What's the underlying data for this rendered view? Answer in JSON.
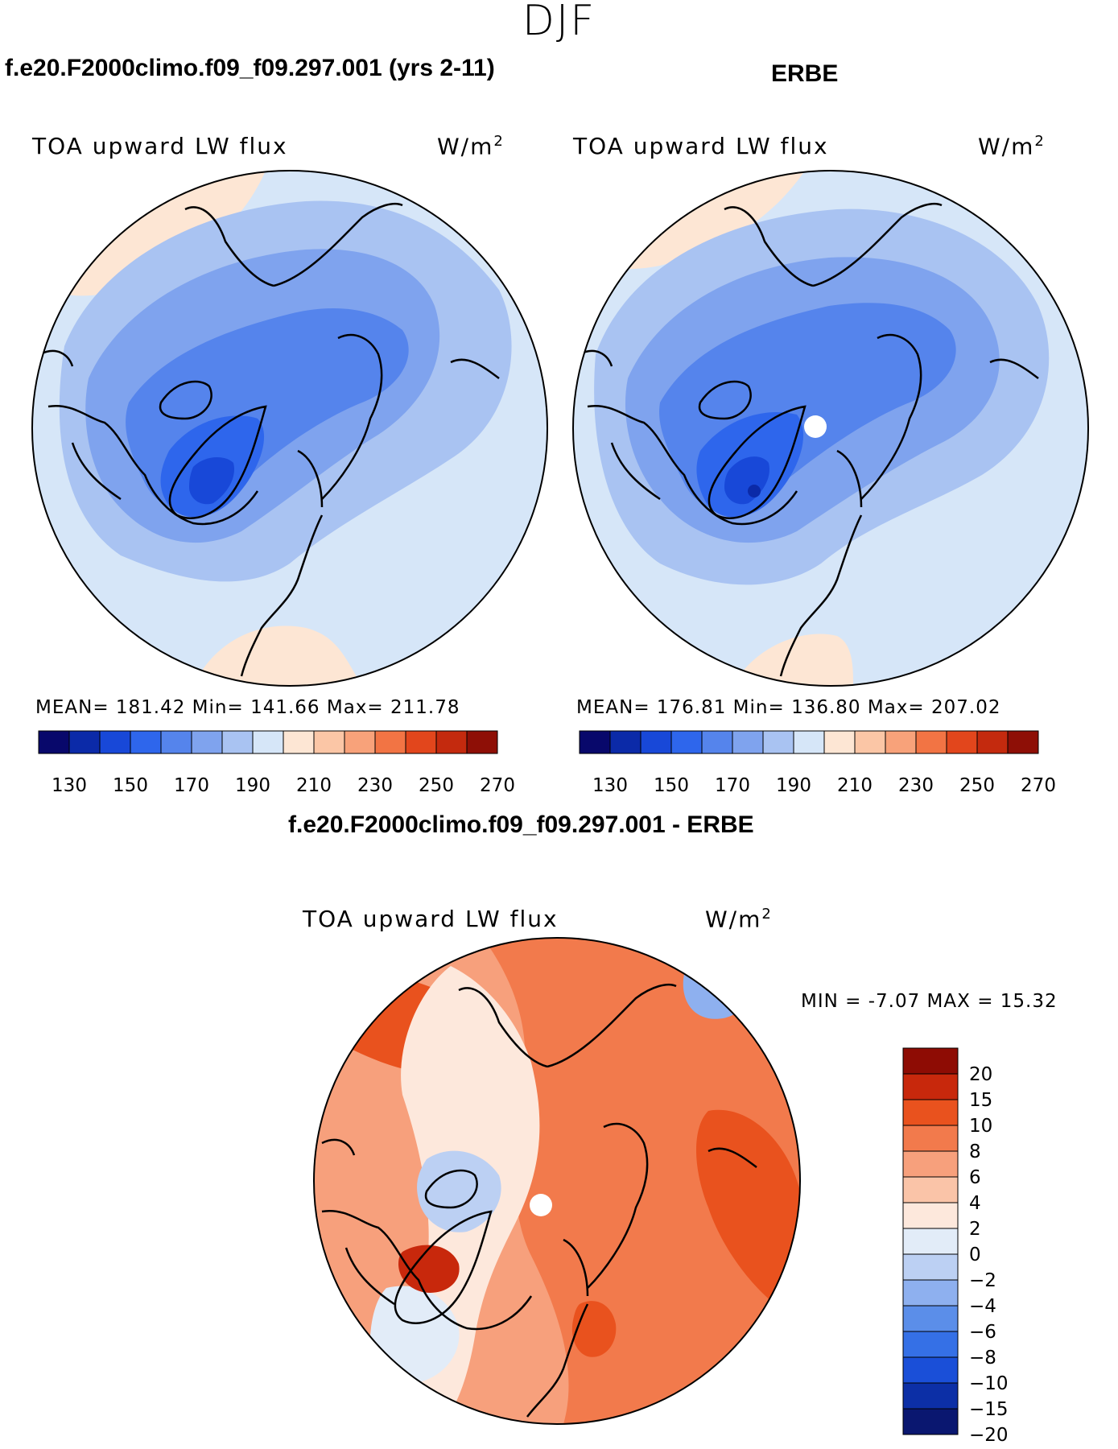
{
  "season": "DJF",
  "panel_left": {
    "title": "f.e20.F2000climo.f09_f09.297.001 (yrs 2-11)",
    "var_label": "TOA upward LW flux",
    "units": "W/m",
    "units_exp": "2",
    "stats": "MEAN= 181.42   Min= 141.66   Max= 211.78"
  },
  "panel_right": {
    "title": "ERBE",
    "var_label": "TOA upward LW flux",
    "units": "W/m",
    "units_exp": "2",
    "stats": "MEAN= 176.81   Min= 136.80   Max= 207.02"
  },
  "panel_diff": {
    "title": "f.e20.F2000climo.f09_f09.297.001 - ERBE",
    "var_label": "TOA upward LW flux",
    "units": "W/m",
    "units_exp": "2",
    "minmax": "MIN =   -7.07 MAX =   15.32"
  },
  "colorbar_abs": {
    "colors": [
      "#08086b",
      "#0b2aa8",
      "#1848d8",
      "#2e66ec",
      "#5584ec",
      "#7fa3ee",
      "#a9c3f2",
      "#d6e6f8",
      "#fde6d4",
      "#fbc6a6",
      "#f8a27a",
      "#f27444",
      "#e2461c",
      "#c42a0e",
      "#8e0f06"
    ],
    "tick_labels": [
      "130",
      "150",
      "170",
      "190",
      "210",
      "230",
      "250",
      "270"
    ]
  },
  "colorbar_diff": {
    "colors": [
      "#0a1770",
      "#0c2fa6",
      "#1a4fd8",
      "#3570e6",
      "#5b8ee9",
      "#8eb0ef",
      "#bcd0f3",
      "#e2ecf8",
      "#fde8dc",
      "#fac4a8",
      "#f7a07c",
      "#f27a4c",
      "#e9521e",
      "#c8280c",
      "#8e0c04"
    ],
    "tick_labels": [
      "20",
      "15",
      "10",
      "8",
      "6",
      "4",
      "2",
      "0",
      "−2",
      "−4",
      "−6",
      "−8",
      "−10",
      "−15",
      "−20"
    ]
  }
}
